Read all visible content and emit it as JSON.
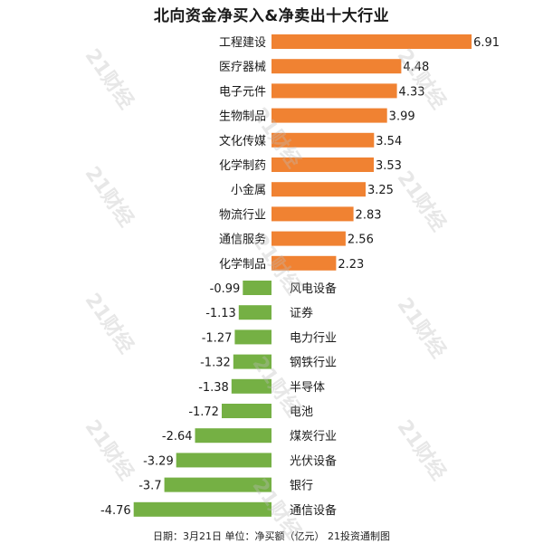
{
  "title": "北向资金净买入&净卖出十大行业",
  "footer": "日期：3月21日  单位：净买额（亿元）  21投资通制图",
  "watermark": "21财经",
  "colors": {
    "positive": "#f08232",
    "negative": "#75b044"
  },
  "chart_data": {
    "type": "bar",
    "orientation": "horizontal",
    "title": "北向资金净买入&净卖出十大行业",
    "categories": [
      "工程建设",
      "医疗器械",
      "电子元件",
      "生物制品",
      "文化传媒",
      "化学制药",
      "小金属",
      "物流行业",
      "通信服务",
      "化学制品",
      "风电设备",
      "证券",
      "电力行业",
      "钢铁行业",
      "半导体",
      "电池",
      "煤炭行业",
      "光伏设备",
      "银行",
      "通信设备"
    ],
    "values": [
      6.91,
      4.48,
      4.33,
      3.99,
      3.54,
      3.53,
      3.25,
      2.83,
      2.56,
      2.23,
      -0.99,
      -1.13,
      -1.27,
      -1.32,
      -1.38,
      -1.72,
      -2.64,
      -3.29,
      -3.7,
      -4.76
    ],
    "value_labels": [
      "6.91",
      "4.48",
      "4.33",
      "3.99",
      "3.54",
      "3.53",
      "3.25",
      "2.83",
      "2.56",
      "2.23",
      "-0.99",
      "-1.13",
      "-1.27",
      "-1.32",
      "-1.38",
      "-1.72",
      "-2.64",
      "-3.29",
      "-3.7",
      "-4.76"
    ],
    "xlim": [
      -4.76,
      6.91
    ],
    "grid": false,
    "legend": "none"
  }
}
